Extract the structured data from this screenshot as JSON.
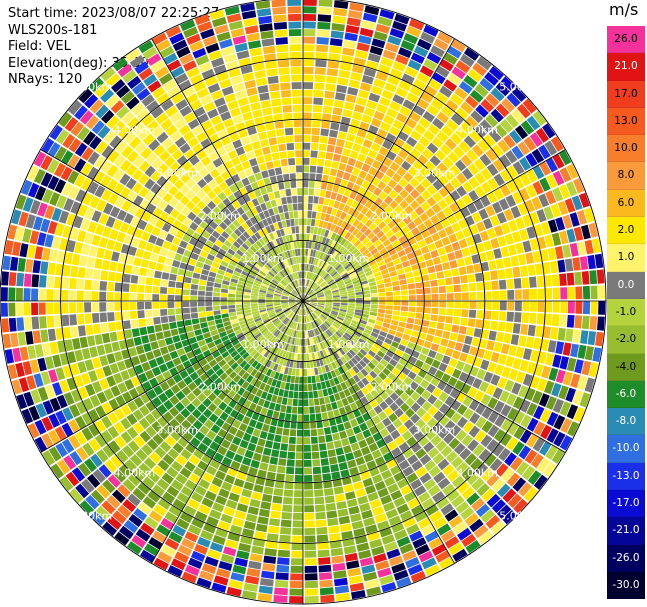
{
  "header": {
    "start_time": "Start time: 2023/08/07 22:25:27",
    "instrument": "WLS200s-181",
    "field": "Field: VEL",
    "elevation": "Elevation(deg): 35.30",
    "nrays": "NRays: 120"
  },
  "colorbar": {
    "unit": "m/s",
    "levels": [
      {
        "label": "26.0",
        "color": "#f5329b",
        "text": "#000000"
      },
      {
        "label": "21.0",
        "color": "#e01414",
        "text": "#ffffff"
      },
      {
        "label": "17.0",
        "color": "#ef3d1e",
        "text": "#000000"
      },
      {
        "label": "13.0",
        "color": "#f55a1e",
        "text": "#000000"
      },
      {
        "label": "10.0",
        "color": "#f77e2a",
        "text": "#000000"
      },
      {
        "label": "8.0",
        "color": "#f99b3a",
        "text": "#000000"
      },
      {
        "label": "6.0",
        "color": "#fbb91f",
        "text": "#000000"
      },
      {
        "label": "2.0",
        "color": "#ffe800",
        "text": "#000000"
      },
      {
        "label": "1.0",
        "color": "#fff36b",
        "text": "#000000"
      },
      {
        "label": "0.0",
        "color": "#7a7a7a",
        "text": "#ffffff"
      },
      {
        "label": "-1.0",
        "color": "#b5d33c",
        "text": "#000000"
      },
      {
        "label": "-2.0",
        "color": "#97be2f",
        "text": "#000000"
      },
      {
        "label": "-4.0",
        "color": "#6e9a1e",
        "text": "#000000"
      },
      {
        "label": "-6.0",
        "color": "#1f8c2a",
        "text": "#ffffff"
      },
      {
        "label": "-8.0",
        "color": "#2a8cb5",
        "text": "#ffffff"
      },
      {
        "label": "-10.0",
        "color": "#2f6fe0",
        "text": "#ffffff"
      },
      {
        "label": "-13.0",
        "color": "#1a2fe8",
        "text": "#ffffff"
      },
      {
        "label": "-17.0",
        "color": "#0a0ad2",
        "text": "#ffffff"
      },
      {
        "label": "-21.0",
        "color": "#050598",
        "text": "#ffffff"
      },
      {
        "label": "-26.0",
        "color": "#000060",
        "text": "#ffffff"
      },
      {
        "label": "-30.0",
        "color": "#000030",
        "text": "#ffffff"
      }
    ]
  },
  "chart_data": {
    "type": "heatmap",
    "subtype": "ppi",
    "field": "VEL",
    "unit": "m/s",
    "nrays": 120,
    "range_rings_km": [
      1,
      2,
      3,
      4,
      5
    ],
    "ring_labels": [
      "1.00km",
      "1.00km",
      "1.00km",
      "1.00km",
      "2.00km",
      "2.00km",
      "2.00km",
      "2.00km",
      "3.00km",
      "3.00km",
      "3.00km",
      "3.00km",
      "4.00km",
      "4.00km",
      "4.00km",
      "4.00km",
      "5.00km",
      "5.00km",
      "5.00km",
      "5.00km"
    ],
    "max_range_km": 5.0,
    "spoke_bearings_deg": [
      0,
      30,
      60,
      90,
      120,
      150,
      180,
      210,
      240,
      270,
      300,
      330
    ],
    "pattern": {
      "inner_km": 1.3,
      "ne_positive_sector_deg": [
        10,
        110
      ],
      "sw_negative_sector_deg": [
        150,
        260
      ],
      "noise_start_km": 4.2
    }
  }
}
